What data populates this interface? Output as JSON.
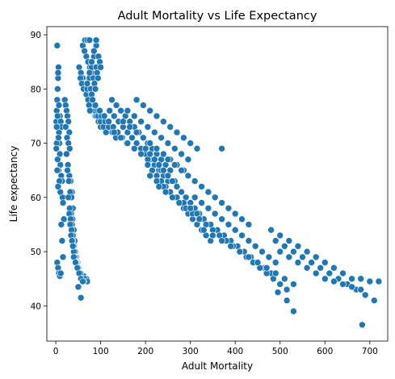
{
  "chart_data": {
    "type": "scatter",
    "title": "Adult Mortality vs Life Expectancy",
    "xlabel": "Adult Mortality",
    "ylabel": "Life expectancy",
    "xlim": [
      -20,
      740
    ],
    "ylim": [
      33.5,
      91.5
    ],
    "x_ticks": [
      0,
      100,
      200,
      300,
      400,
      500,
      600,
      700
    ],
    "y_ticks": [
      40,
      50,
      60,
      70,
      80,
      90
    ],
    "grid": false,
    "legend": "none",
    "marker_color": "#1f77b4",
    "marker_edge_color": "#ffffff",
    "x": [
      1,
      2,
      3,
      4,
      5,
      6,
      7,
      8,
      9,
      10,
      12,
      14,
      15,
      16,
      18,
      3,
      5,
      7,
      9,
      11,
      13,
      2,
      4,
      6,
      8,
      10,
      12,
      14,
      16,
      3,
      5,
      7,
      9,
      11,
      2,
      4,
      6,
      1,
      3,
      5,
      20,
      22,
      24,
      26,
      28,
      30,
      22,
      25,
      28,
      31,
      24,
      27,
      30,
      33,
      36,
      26,
      29,
      32,
      35,
      38,
      28,
      31,
      34,
      37,
      40,
      30,
      33,
      36,
      39,
      42,
      32,
      35,
      38,
      41,
      44,
      34,
      37,
      40,
      43,
      46,
      36,
      40,
      44,
      48,
      38,
      42,
      46,
      50,
      40,
      45,
      50,
      55,
      44,
      50,
      56,
      62,
      48,
      55,
      60,
      68,
      52,
      58,
      64,
      70,
      56,
      62,
      52,
      56,
      60,
      64,
      68,
      72,
      76,
      80,
      84,
      88,
      55,
      60,
      65,
      70,
      75,
      80,
      85,
      90,
      95,
      100,
      58,
      64,
      70,
      76,
      82,
      88,
      94,
      100,
      106,
      112,
      62,
      70,
      78,
      86,
      94,
      102,
      110,
      118,
      126,
      134,
      68,
      78,
      88,
      98,
      108,
      118,
      128,
      138,
      148,
      158,
      60,
      64,
      68,
      72,
      76,
      80,
      84,
      65,
      70,
      75,
      120,
      130,
      140,
      150,
      160,
      170,
      180,
      190,
      200,
      210,
      220,
      230,
      240,
      250,
      125,
      135,
      145,
      155,
      165,
      175,
      185,
      195,
      205,
      215,
      225,
      235,
      245,
      255,
      130,
      145,
      160,
      175,
      190,
      205,
      220,
      235,
      250,
      265,
      150,
      165,
      180,
      195,
      210,
      225,
      240,
      255,
      270,
      285,
      160,
      175,
      190,
      205,
      220,
      235,
      250,
      265,
      280,
      295,
      180,
      195,
      210,
      225,
      240,
      255,
      270,
      285,
      300,
      315,
      200,
      210,
      220,
      230,
      240,
      250,
      260,
      270,
      280,
      290,
      300,
      310,
      320,
      330,
      340,
      205,
      215,
      225,
      235,
      245,
      255,
      265,
      275,
      285,
      295,
      305,
      315,
      325,
      335,
      345,
      210,
      225,
      240,
      255,
      270,
      285,
      300,
      315,
      330,
      345,
      360,
      375,
      390,
      230,
      245,
      260,
      275,
      290,
      305,
      320,
      335,
      350,
      365,
      380,
      395,
      410,
      250,
      265,
      280,
      295,
      310,
      325,
      340,
      355,
      370,
      385,
      400,
      415,
      430,
      300,
      315,
      330,
      345,
      360,
      375,
      390,
      405,
      420,
      435,
      450,
      465,
      480,
      310,
      325,
      340,
      355,
      370,
      385,
      400,
      415,
      430,
      445,
      460,
      475,
      490,
      320,
      335,
      350,
      365,
      380,
      395,
      410,
      425,
      440,
      455,
      470,
      485,
      500,
      515,
      330,
      350,
      370,
      390,
      410,
      430,
      450,
      470,
      490,
      510,
      530,
      480,
      500,
      520,
      540,
      560,
      580,
      600,
      620,
      640,
      660,
      680,
      700,
      720,
      490,
      510,
      530,
      550,
      570,
      590,
      610,
      630,
      650,
      670,
      690,
      710,
      500,
      520,
      540,
      560,
      580,
      600,
      620,
      640,
      660,
      680,
      70,
      75,
      80,
      85,
      90,
      70,
      75,
      80,
      85,
      90,
      72,
      78,
      84,
      90,
      95,
      74,
      80,
      86,
      92,
      98,
      76,
      82,
      88,
      94,
      100,
      370,
      530,
      515,
      495,
      683,
      50,
      56,
      60
    ],
    "y": [
      74,
      76,
      78,
      80,
      82,
      84,
      72,
      70,
      68,
      66,
      64,
      63,
      60,
      59,
      56,
      88,
      83,
      77,
      75,
      74,
      73,
      70,
      67,
      65,
      63,
      61,
      55,
      52,
      49,
      48,
      47,
      46,
      45.5,
      46,
      73,
      75,
      71,
      69,
      65,
      62,
      78,
      77,
      76,
      75,
      74,
      72,
      73,
      71,
      70,
      69,
      68,
      66,
      64,
      63,
      61,
      65,
      63,
      61,
      60,
      58,
      60,
      58,
      57,
      56,
      54,
      57,
      56,
      55,
      53,
      52,
      55,
      54,
      53,
      51,
      50,
      53,
      52,
      51,
      50,
      49,
      52,
      50,
      49,
      48,
      51,
      49,
      48,
      47,
      49,
      48,
      47,
      46,
      48,
      47,
      46,
      45.5,
      47,
      46,
      45,
      45,
      46,
      45,
      45,
      44.5,
      45,
      44.5,
      84,
      83,
      82,
      81,
      80,
      79,
      78,
      77,
      76,
      75,
      82,
      81,
      80,
      79,
      78,
      77,
      76,
      75,
      74,
      73,
      81,
      80,
      79,
      78,
      77,
      76,
      75,
      74,
      73,
      72,
      80,
      79,
      78,
      77,
      76,
      75,
      74,
      73,
      72,
      71,
      79,
      78,
      77,
      76,
      75,
      74,
      73,
      72,
      71,
      70,
      88,
      87,
      86,
      85,
      84,
      83,
      82,
      89,
      89,
      89,
      76,
      75,
      74,
      73,
      72,
      71,
      70,
      69,
      68,
      67,
      66,
      65,
      64,
      63,
      78,
      77,
      76,
      75,
      74,
      73,
      72,
      71,
      70,
      69,
      68,
      67,
      66,
      65,
      72,
      71,
      70,
      69,
      68,
      67,
      66,
      65,
      64,
      63,
      74,
      73,
      72,
      71,
      70,
      69,
      68,
      67,
      66,
      65,
      76,
      75,
      74,
      73,
      72,
      71,
      70,
      69,
      68,
      67,
      78,
      77,
      76,
      75,
      74,
      73,
      72,
      71,
      70,
      69,
      69,
      68,
      67,
      66,
      65,
      64,
      63,
      62,
      61,
      60,
      59,
      58,
      57,
      56,
      55,
      66,
      65,
      64,
      63,
      62,
      61,
      60,
      59,
      58,
      57,
      56,
      55,
      54,
      53,
      52,
      64,
      63,
      62,
      61,
      60,
      59,
      58,
      57,
      56,
      55,
      54,
      53,
      52,
      62,
      61,
      60,
      59,
      58,
      57,
      56,
      55,
      54,
      53,
      52,
      51,
      50,
      67,
      66,
      65,
      64,
      63,
      62,
      61,
      60,
      59,
      58,
      57,
      56,
      55,
      58,
      57,
      56,
      55,
      54,
      53,
      52,
      51,
      50,
      49,
      48,
      47,
      46,
      60,
      59,
      58,
      57,
      56,
      55,
      54,
      53,
      52,
      51,
      50,
      49,
      48,
      56,
      55,
      54,
      53,
      52,
      51,
      50,
      49,
      48,
      47,
      46,
      45,
      44,
      43,
      54,
      53,
      52,
      51,
      50,
      49,
      48,
      47,
      46,
      45,
      44,
      54,
      53,
      52,
      51,
      50,
      49,
      48,
      47,
      46,
      45,
      45,
      44.5,
      44.5,
      52,
      51,
      50,
      49,
      48,
      47,
      46,
      45,
      44,
      43,
      42,
      41,
      50,
      49,
      48,
      47,
      46,
      45,
      44.5,
      44,
      43.5,
      43,
      80,
      82,
      84,
      86,
      88,
      81,
      83,
      85,
      87,
      89,
      78,
      80,
      82,
      84,
      86,
      77,
      79,
      81,
      83,
      85,
      76,
      78,
      80,
      82,
      84,
      69,
      39,
      41,
      42.5,
      36.5,
      43.5,
      41.5,
      44.5
    ]
  }
}
